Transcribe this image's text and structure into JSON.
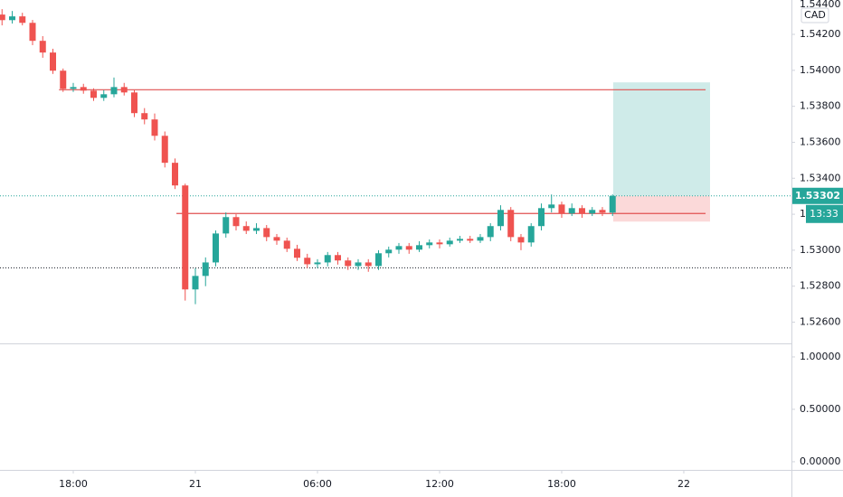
{
  "chart_data": {
    "type": "candlestick",
    "currency": "CAD",
    "countdown": "13:33",
    "last_price": 1.53302,
    "up_color": "#26a69a",
    "down_color": "#ef5350",
    "x": [
      14.5,
      15,
      15.5,
      16,
      16.5,
      17,
      17.5,
      18,
      18.5,
      19,
      19.5,
      20,
      20.5,
      21,
      21.5,
      22,
      22.5,
      23,
      23.5,
      24,
      24.5,
      25,
      25.5,
      26,
      26.5,
      27,
      27.5,
      28,
      28.5,
      29,
      29.5,
      30,
      30.5,
      31,
      31.5,
      32,
      32.5,
      33,
      33.5,
      34,
      34.5,
      35,
      35.5,
      36,
      36.5,
      37,
      37.5,
      38,
      38.5,
      39,
      39.5,
      40,
      40.5,
      41,
      41.5,
      42,
      42.5,
      43,
      43.5,
      44,
      44.5
    ],
    "open": [
      1.5431,
      1.54279,
      1.543,
      1.54264,
      1.54164,
      1.54099,
      1.53998,
      1.53897,
      1.53907,
      1.53887,
      1.53847,
      1.53867,
      1.53907,
      1.53877,
      1.53762,
      1.53727,
      1.53636,
      1.53486,
      1.5336,
      1.52782,
      1.52857,
      1.52932,
      1.53093,
      1.53184,
      1.53134,
      1.53108,
      1.53123,
      1.53073,
      1.53053,
      1.53008,
      1.52958,
      1.52922,
      1.52932,
      1.52973,
      1.52943,
      1.52912,
      1.52932,
      1.52912,
      1.52983,
      1.53003,
      1.53023,
      1.53003,
      1.53028,
      1.53043,
      1.53033,
      1.53053,
      1.53063,
      1.53053,
      1.53073,
      1.53134,
      1.53224,
      1.53073,
      1.53043,
      1.53134,
      1.53234,
      1.53254,
      1.53204,
      1.53234,
      1.53204,
      1.53224,
      1.53209
    ],
    "high": [
      1.5434,
      1.5433,
      1.5432,
      1.5428,
      1.5419,
      1.5412,
      1.5401,
      1.5393,
      1.53925,
      1.539,
      1.5389,
      1.5396,
      1.5393,
      1.5389,
      1.5379,
      1.5376,
      1.5366,
      1.5351,
      1.5337,
      1.529,
      1.5296,
      1.5311,
      1.5321,
      1.532,
      1.5316,
      1.5315,
      1.5314,
      1.5309,
      1.5307,
      1.5303,
      1.5298,
      1.5295,
      1.5299,
      1.5299,
      1.5296,
      1.5295,
      1.5295,
      1.53,
      1.5302,
      1.5304,
      1.5304,
      1.5305,
      1.5306,
      1.5306,
      1.5307,
      1.5308,
      1.5308,
      1.5309,
      1.5315,
      1.5325,
      1.5324,
      1.5309,
      1.5315,
      1.5326,
      1.5331,
      1.5327,
      1.5326,
      1.5325,
      1.5324,
      1.5324,
      1.5331
    ],
    "low": [
      1.5425,
      1.5426,
      1.5425,
      1.5414,
      1.5407,
      1.5398,
      1.5388,
      1.5388,
      1.5387,
      1.5383,
      1.5383,
      1.5385,
      1.5386,
      1.5374,
      1.537,
      1.5361,
      1.5346,
      1.5334,
      1.5272,
      1.527,
      1.528,
      1.5291,
      1.5307,
      1.5311,
      1.5309,
      1.5309,
      1.5305,
      1.5303,
      1.5299,
      1.5294,
      1.529,
      1.529,
      1.5291,
      1.5292,
      1.5289,
      1.5289,
      1.5288,
      1.5289,
      1.5296,
      1.5298,
      1.5298,
      1.5299,
      1.5301,
      1.5301,
      1.5302,
      1.5304,
      1.5304,
      1.5304,
      1.5305,
      1.5311,
      1.5305,
      1.53,
      1.5302,
      1.5311,
      1.5321,
      1.5318,
      1.5319,
      1.5318,
      1.5319,
      1.5319,
      1.5319
    ],
    "close": [
      1.54279,
      1.543,
      1.54264,
      1.54164,
      1.54099,
      1.53998,
      1.53897,
      1.53907,
      1.53887,
      1.53847,
      1.53867,
      1.53907,
      1.53877,
      1.53762,
      1.53727,
      1.53636,
      1.53486,
      1.5336,
      1.52782,
      1.52857,
      1.52932,
      1.53093,
      1.53184,
      1.53134,
      1.53108,
      1.53123,
      1.53073,
      1.53053,
      1.53008,
      1.52958,
      1.52922,
      1.52932,
      1.52973,
      1.52943,
      1.52912,
      1.52932,
      1.52912,
      1.52983,
      1.53003,
      1.53023,
      1.53003,
      1.53028,
      1.53043,
      1.53033,
      1.53053,
      1.53063,
      1.53053,
      1.53073,
      1.53134,
      1.53224,
      1.53073,
      1.53043,
      1.53134,
      1.53234,
      1.53254,
      1.53204,
      1.53234,
      1.53204,
      1.53224,
      1.53209,
      1.53302
    ],
    "xlim": [
      14.4,
      53.29
    ],
    "xticks": [
      {
        "value": 18,
        "label": "18:00"
      },
      {
        "value": 24,
        "label": "21"
      },
      {
        "value": 30,
        "label": "06:00"
      },
      {
        "value": 36,
        "label": "12:00"
      },
      {
        "value": 42,
        "label": "18:00"
      },
      {
        "value": 48,
        "label": "22"
      }
    ],
    "ylim": [
      1.52482,
      1.54391
    ],
    "yticks": [
      {
        "value": 1.526,
        "label": "1.52600"
      },
      {
        "value": 1.528,
        "label": "1.52800"
      },
      {
        "value": 1.53,
        "label": "1.53000"
      },
      {
        "value": 1.532,
        "label": "1.53200"
      },
      {
        "value": 1.534,
        "label": "1.53400"
      },
      {
        "value": 1.536,
        "label": "1.53600"
      },
      {
        "value": 1.538,
        "label": "1.53800"
      },
      {
        "value": 1.54,
        "label": "1.54000"
      },
      {
        "value": 1.542,
        "label": "1.54200"
      },
      {
        "value": 1.544,
        "label": "1.54400"
      }
    ],
    "lines": [
      {
        "price": 1.53892,
        "start": 17.3,
        "end": 49.07,
        "color": "#e05050"
      },
      {
        "price": 1.53204,
        "start": 23.07,
        "end": 49.07,
        "color": "#e05050"
      }
    ],
    "dotted_line": 1.52902,
    "position": {
      "entry": 1.53302,
      "target": 1.53933,
      "stop": 1.53159,
      "start": 44.53,
      "end": 49.29
    },
    "indicator_ylim": [
      -0.078,
      1.129
    ],
    "indicator_ticks": [
      {
        "value": 0,
        "label": "0.00000"
      },
      {
        "value": 0.5,
        "label": "0.50000"
      },
      {
        "value": 1,
        "label": "1.00000"
      }
    ]
  }
}
